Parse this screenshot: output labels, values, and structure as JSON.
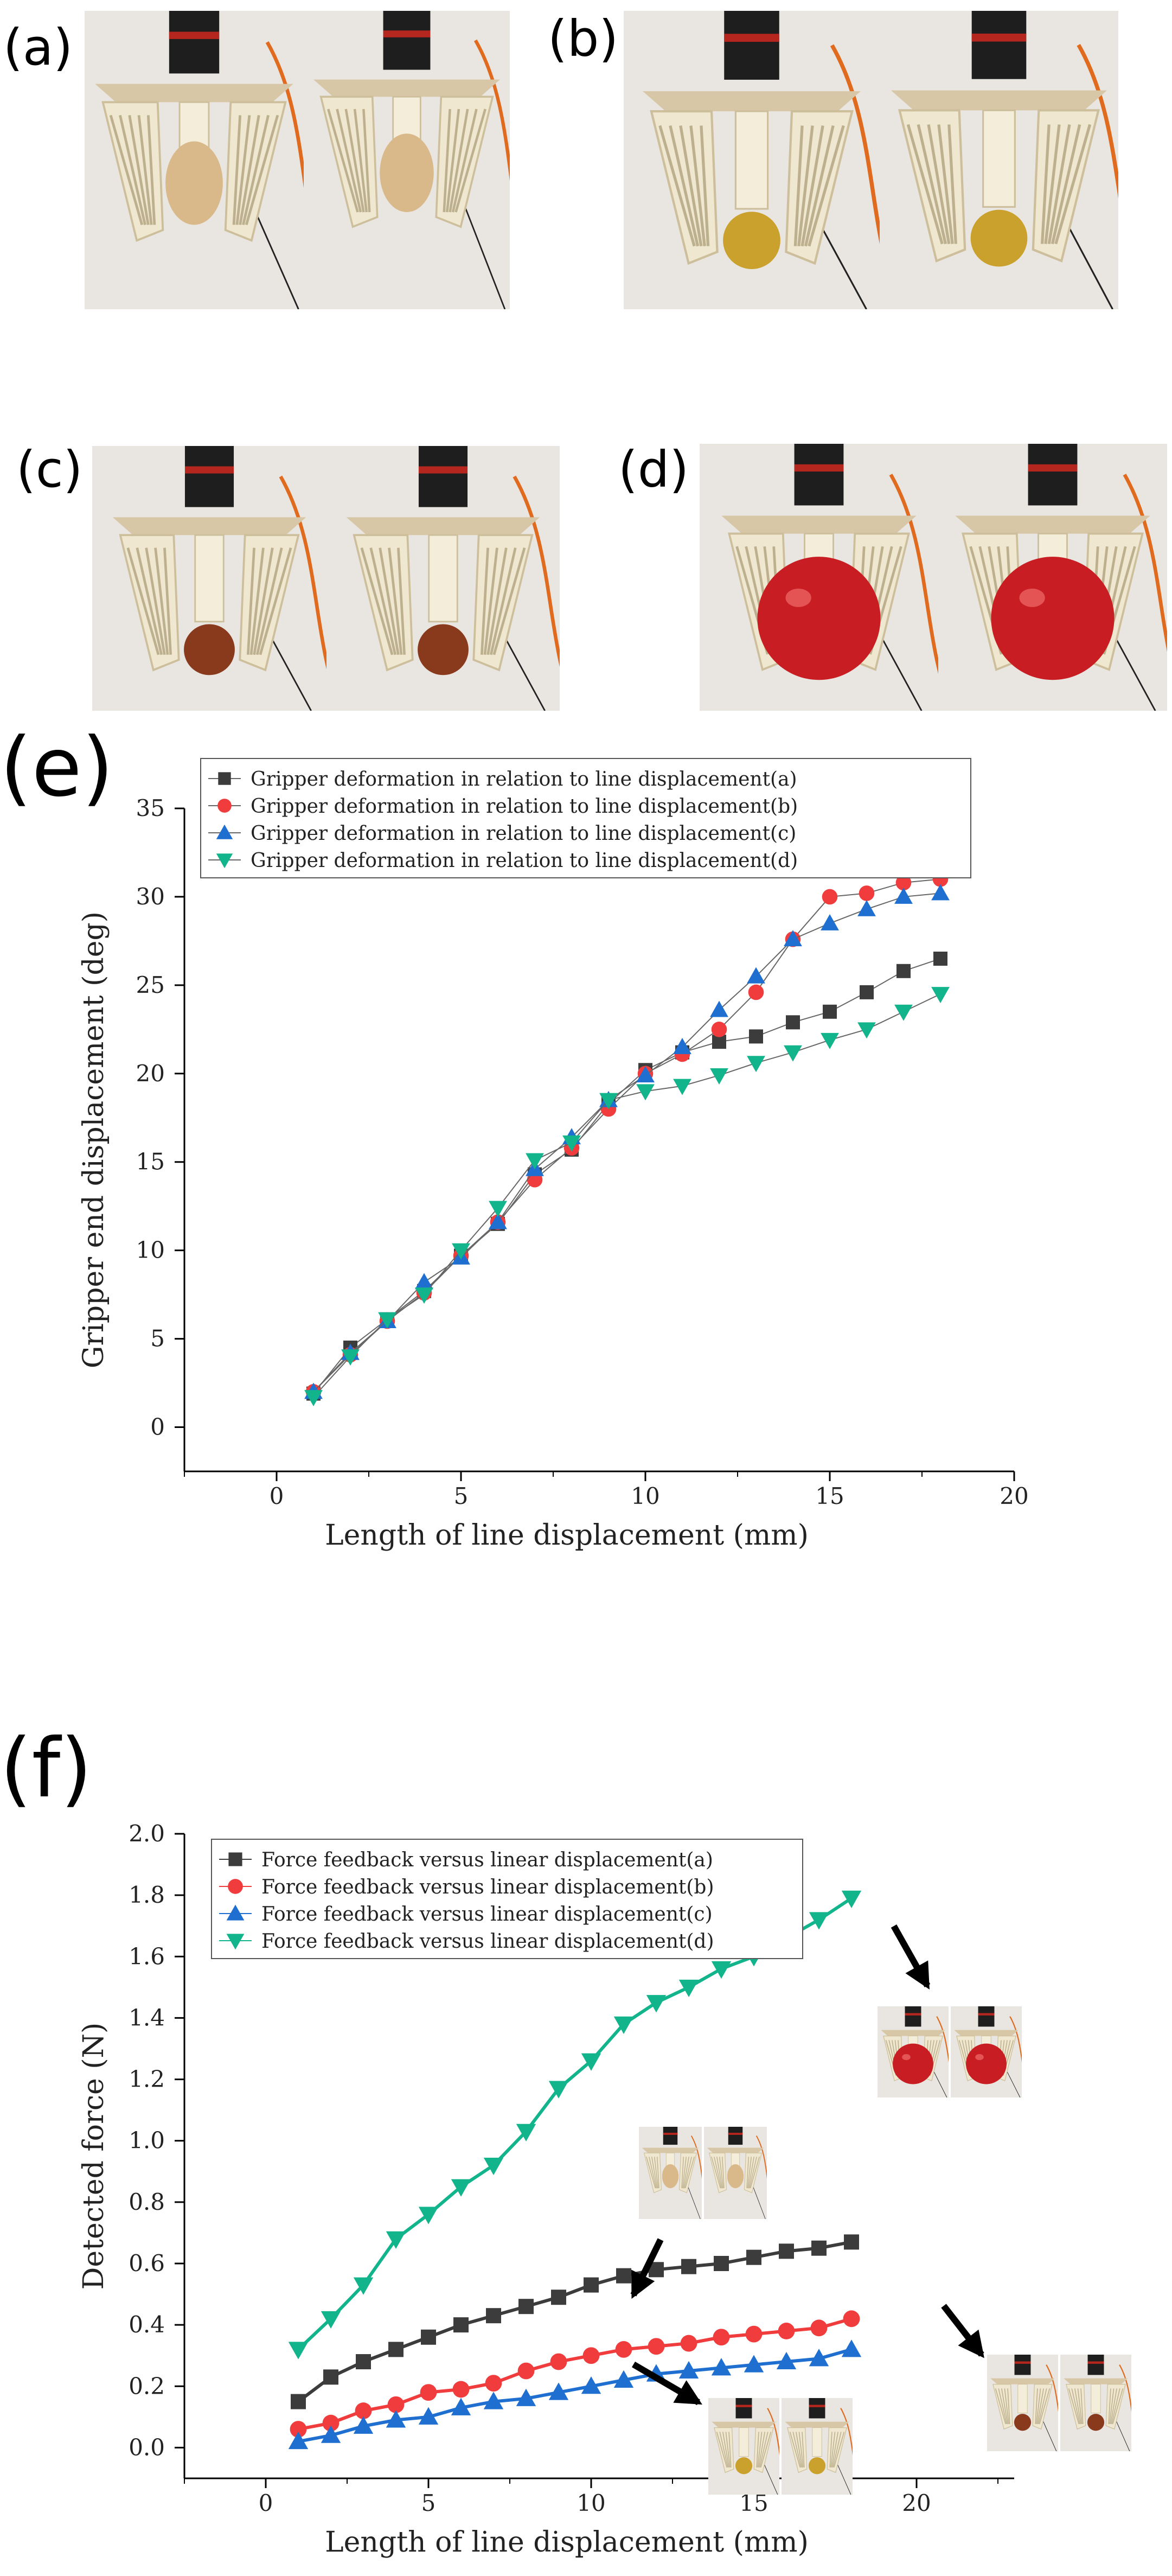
{
  "panels": {
    "a": "(a)",
    "b": "(b)",
    "c": "(c)",
    "d": "(d)",
    "e": "(e)",
    "f": "(f)"
  },
  "photos": [
    {
      "panel": "a",
      "object": "egg",
      "color": "#d9b98a"
    },
    {
      "panel": "b",
      "object": "small ball",
      "color": "#c9a12c"
    },
    {
      "panel": "c",
      "object": "brown ball",
      "color": "#8a3a1c"
    },
    {
      "panel": "d",
      "object": "tomato",
      "color": "#c81e23"
    }
  ],
  "chart_data": [
    {
      "type": "line",
      "title": "",
      "xlabel": "Length of line displacement (mm)",
      "ylabel": "Gripper end displacement (deg)",
      "xlim": [
        -2.5,
        20
      ],
      "ylim": [
        -2.5,
        35
      ],
      "xticks": [
        0,
        5,
        10,
        15,
        20
      ],
      "yticks": [
        0,
        5,
        10,
        15,
        20,
        25,
        30,
        35
      ],
      "x": [
        1,
        2,
        3,
        4,
        5,
        6,
        7,
        8,
        9,
        10,
        11,
        12,
        13,
        14,
        15,
        16,
        17,
        18
      ],
      "legend_position": "top-left",
      "series": [
        {
          "name": "Gripper deformation in relation to line displacement(a)",
          "marker": "square",
          "color": "#3c3c3c",
          "values": [
            1.9,
            4.5,
            6.1,
            7.7,
            9.7,
            11.5,
            14.3,
            15.7,
            18.3,
            20.2,
            21.2,
            21.8,
            22.1,
            22.9,
            23.5,
            24.6,
            25.8,
            26.5
          ]
        },
        {
          "name": "Gripper deformation in relation to line displacement(b)",
          "marker": "circle",
          "color": "#f03c3c",
          "values": [
            2.0,
            4.1,
            6.0,
            7.6,
            9.7,
            11.6,
            14.0,
            15.8,
            18.0,
            20.0,
            21.1,
            22.5,
            24.6,
            27.6,
            30.0,
            30.2,
            30.8,
            31.0
          ]
        },
        {
          "name": "Gripper deformation in relation to line displacement(c)",
          "marker": "triangle-up",
          "color": "#1f6fd1",
          "values": [
            2.0,
            4.2,
            6.0,
            8.2,
            9.6,
            11.6,
            14.6,
            16.4,
            18.5,
            19.9,
            21.5,
            23.6,
            25.5,
            27.6,
            28.5,
            29.3,
            30.0,
            30.2
          ]
        },
        {
          "name": "Gripper deformation in relation to line displacement(d)",
          "marker": "triangle-down",
          "color": "#12b48c",
          "values": [
            1.7,
            4.0,
            6.1,
            7.5,
            10.0,
            12.4,
            15.1,
            16.1,
            18.5,
            19.0,
            19.3,
            19.9,
            20.6,
            21.2,
            21.9,
            22.5,
            23.5,
            24.5
          ]
        }
      ]
    },
    {
      "type": "line",
      "title": "",
      "xlabel": "Length of line displacement (mm)",
      "ylabel": "Detected force (N)",
      "xlim": [
        -2.5,
        23
      ],
      "ylim": [
        -0.1,
        2.0
      ],
      "xticks": [
        0,
        5,
        10,
        15,
        20
      ],
      "yticks": [
        "0.0",
        "0.2",
        "0.4",
        "0.6",
        "0.8",
        "1.0",
        "1.2",
        "1.4",
        "1.6",
        "1.8",
        "2.0"
      ],
      "x": [
        1,
        2,
        3,
        4,
        5,
        6,
        7,
        8,
        9,
        10,
        11,
        12,
        13,
        14,
        15,
        16,
        17,
        18
      ],
      "legend_position": "top-left",
      "series": [
        {
          "name": "Force feedback versus linear displacement(a)",
          "marker": "square",
          "color": "#3c3c3c",
          "values": [
            0.15,
            0.23,
            0.28,
            0.32,
            0.36,
            0.4,
            0.43,
            0.46,
            0.49,
            0.53,
            0.56,
            0.58,
            0.59,
            0.6,
            0.62,
            0.64,
            0.65,
            0.67
          ]
        },
        {
          "name": "Force feedback versus linear displacement(b)",
          "marker": "circle",
          "color": "#f03c3c",
          "values": [
            0.06,
            0.08,
            0.12,
            0.14,
            0.18,
            0.19,
            0.21,
            0.25,
            0.28,
            0.3,
            0.32,
            0.33,
            0.34,
            0.36,
            0.37,
            0.38,
            0.39,
            0.42
          ]
        },
        {
          "name": "Force feedback versus linear displacement(c)",
          "marker": "triangle-up",
          "color": "#1f6fd1",
          "values": [
            0.02,
            0.04,
            0.07,
            0.09,
            0.1,
            0.13,
            0.15,
            0.16,
            0.18,
            0.2,
            0.22,
            0.24,
            0.25,
            0.26,
            0.27,
            0.28,
            0.29,
            0.32
          ]
        },
        {
          "name": "Force feedback versus linear displacement(d)",
          "marker": "triangle-down",
          "color": "#12b48c",
          "values": [
            0.32,
            0.42,
            0.53,
            0.68,
            0.76,
            0.85,
            0.92,
            1.03,
            1.17,
            1.26,
            1.38,
            1.45,
            1.5,
            1.56,
            1.6,
            1.66,
            1.72,
            1.79
          ]
        }
      ]
    }
  ]
}
